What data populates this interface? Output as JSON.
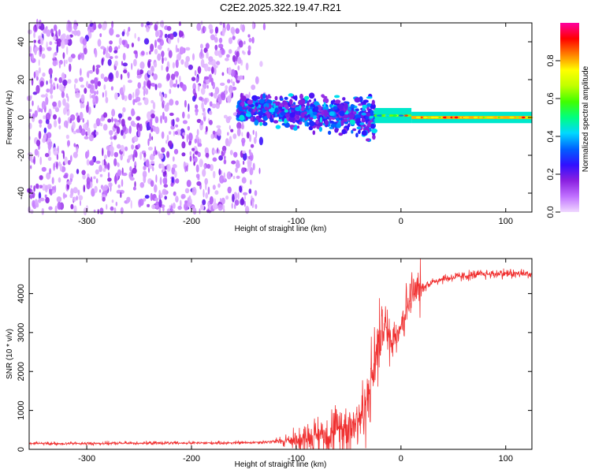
{
  "title": "C2E2.2025.322.19.47.R21",
  "chart_data": [
    {
      "type": "heatmap",
      "xlabel": "Height of straight line (km)",
      "ylabel": "Frequency (Hz)",
      "xlim": [
        -355,
        125
      ],
      "ylim": [
        -50,
        50
      ],
      "xticks": [
        -300,
        -200,
        -100,
        0,
        100
      ],
      "yticks": [
        -40,
        -20,
        0,
        20,
        40
      ],
      "colorbar": {
        "label": "Normalized spectral amplitude",
        "range": [
          0,
          1
        ],
        "ticks": [
          0.0,
          0.2,
          0.4,
          0.6,
          0.8
        ],
        "colors": [
          "#f0d8ff",
          "#c070ff",
          "#8a20e0",
          "#3010ff",
          "#0060ff",
          "#00d8ff",
          "#00ff80",
          "#40ff00",
          "#c0ff00",
          "#ffff00",
          "#ff8000",
          "#ff0000",
          "#ff00a0"
        ]
      },
      "regions": [
        {
          "x_range": [
            -355,
            -130
          ],
          "freq_range": [
            -50,
            50
          ],
          "amplitude": [
            0.02,
            0.25
          ],
          "pattern": "scattered noise"
        },
        {
          "x_range": [
            -155,
            -25
          ],
          "freq_center": 5,
          "freq_spread": [
            12,
            0
          ],
          "amplitude": [
            0.15,
            0.45
          ],
          "pattern": "noisy band tapering downward"
        },
        {
          "x_range": [
            -25,
            10
          ],
          "freq_center": 1,
          "freq_spread": 3,
          "amplitude": [
            0.3,
            0.9
          ],
          "pattern": "narrowing line"
        },
        {
          "x_range": [
            10,
            125
          ],
          "freq_center": 0,
          "freq_spread": 2,
          "amplitude": [
            0.6,
            0.95
          ],
          "pattern": "steady line"
        }
      ]
    },
    {
      "type": "line",
      "xlabel": "Height of straight line (km)",
      "ylabel": "SNR (10 * v/v)",
      "xlim": [
        -355,
        125
      ],
      "ylim": [
        0,
        4900
      ],
      "xticks": [
        -300,
        -200,
        -100,
        0,
        100
      ],
      "yticks": [
        0,
        1000,
        2000,
        3000,
        4000
      ],
      "color": "#f03030",
      "series": [
        {
          "x": [
            -355,
            -300,
            -250,
            -200,
            -150,
            -120,
            -100,
            -80,
            -60,
            -45,
            -35,
            -28,
            -22,
            -18,
            -15,
            -10,
            -5,
            0,
            5,
            10,
            20,
            30,
            40,
            60,
            80,
            100,
            125
          ],
          "y": [
            150,
            150,
            160,
            160,
            170,
            200,
            250,
            350,
            500,
            700,
            1000,
            1800,
            2600,
            3100,
            3200,
            2800,
            3000,
            3200,
            3600,
            3950,
            4150,
            4300,
            4380,
            4450,
            4500,
            4520,
            4500
          ]
        }
      ]
    }
  ]
}
